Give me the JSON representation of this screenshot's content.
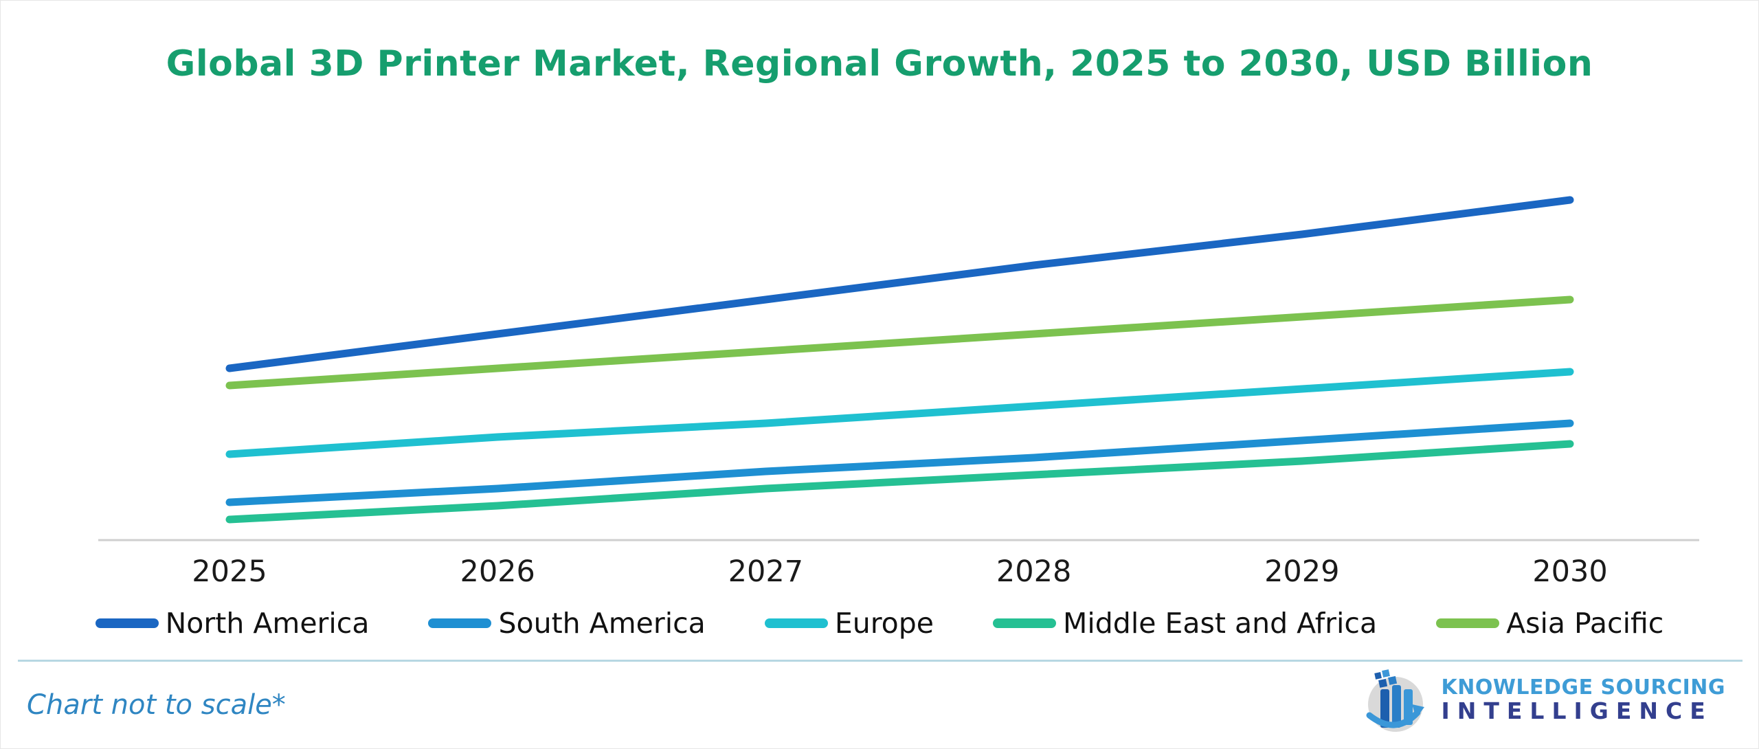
{
  "page": {
    "title": "Global 3D Printer Market, Regional Growth, 2025 to 2030, USD Billion",
    "footnote": "Chart not to scale*",
    "logo": {
      "line1": "KNOWLEDGE SOURCING",
      "line2": "INTELLIGENCE"
    }
  },
  "colors": {
    "title_green": "#169E6E",
    "axis_gray": "#cfcfcf",
    "separator_blue": "#b7d7e2",
    "footnote_blue": "#2F86C2",
    "logo_light_blue": "#3E9CD6",
    "logo_dark_blue": "#333F8E"
  },
  "chart_data": {
    "type": "line",
    "title": "Global 3D Printer Market, Regional Growth, 2025 to 2030, USD Billion",
    "xlabel": "",
    "ylabel": "",
    "x": [
      2025,
      2026,
      2027,
      2028,
      2029,
      2030
    ],
    "series": [
      {
        "name": "North America",
        "color": "#1A66C2",
        "relative_values": [
          0.5,
          0.6,
          0.7,
          0.8,
          0.89,
          0.99
        ]
      },
      {
        "name": "South America",
        "color": "#1E8FD2",
        "relative_values": [
          0.11,
          0.15,
          0.2,
          0.24,
          0.29,
          0.34
        ]
      },
      {
        "name": "Europe",
        "color": "#1FC0D0",
        "relative_values": [
          0.25,
          0.3,
          0.34,
          0.39,
          0.44,
          0.49
        ]
      },
      {
        "name": "Middle East and Africa",
        "color": "#25C093",
        "relative_values": [
          0.06,
          0.1,
          0.15,
          0.19,
          0.23,
          0.28
        ]
      },
      {
        "name": "Asia Pacific",
        "color": "#7CC24F",
        "relative_values": [
          0.45,
          0.5,
          0.55,
          0.6,
          0.65,
          0.7
        ]
      }
    ],
    "value_axis_note": "No y-axis values shown; chart explicitly labeled not to scale, values are unitless relative positions",
    "grid": false,
    "legend_position": "bottom"
  }
}
